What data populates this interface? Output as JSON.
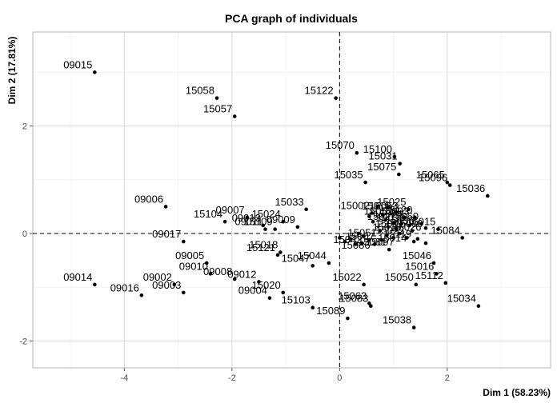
{
  "chart_data": {
    "type": "scatter",
    "title": "PCA graph of individuals",
    "xlabel": "Dim 1 (58.23%)",
    "ylabel": "Dim 2 (17.81%)",
    "xlim": [
      -5.7,
      3.92
    ],
    "ylim": [
      -2.5,
      3.75
    ],
    "xticks": [
      -4,
      -2,
      0,
      2
    ],
    "yticks": [
      -2,
      0,
      2
    ],
    "grid": true,
    "reference_lines": {
      "x": 0,
      "y": 0
    },
    "point_color": "#000000",
    "points": [
      {
        "label": "09015",
        "x": -4.55,
        "y": 3.0
      },
      {
        "label": "15058",
        "x": -2.28,
        "y": 2.52
      },
      {
        "label": "15057",
        "x": -1.95,
        "y": 2.18
      },
      {
        "label": "15122",
        "x": -0.07,
        "y": 2.52
      },
      {
        "label": "15070",
        "x": 0.32,
        "y": 1.5
      },
      {
        "label": "15100",
        "x": 1.02,
        "y": 1.43
      },
      {
        "label": "15031",
        "x": 1.12,
        "y": 1.3
      },
      {
        "label": "15075",
        "x": 1.1,
        "y": 1.1
      },
      {
        "label": "15035",
        "x": 0.48,
        "y": 0.95
      },
      {
        "label": "15065",
        "x": 2.0,
        "y": 0.95
      },
      {
        "label": "15096",
        "x": 2.05,
        "y": 0.9
      },
      {
        "label": "15036",
        "x": 2.75,
        "y": 0.7
      },
      {
        "label": "09006",
        "x": -3.23,
        "y": 0.5
      },
      {
        "label": "15033",
        "x": -0.62,
        "y": 0.45
      },
      {
        "label": "15025",
        "x": 1.28,
        "y": 0.45
      },
      {
        "label": "15120",
        "x": 1.4,
        "y": 0.3
      },
      {
        "label": "15015",
        "x": 1.83,
        "y": 0.08
      },
      {
        "label": "15104",
        "x": -2.13,
        "y": 0.22
      },
      {
        "label": "15024",
        "x": -1.05,
        "y": 0.22
      },
      {
        "label": "09007",
        "x": -1.72,
        "y": 0.3
      },
      {
        "label": "09013",
        "x": -1.42,
        "y": 0.15
      },
      {
        "label": "09011",
        "x": -1.38,
        "y": 0.08
      },
      {
        "label": "15109",
        "x": -1.2,
        "y": 0.08
      },
      {
        "label": "09009",
        "x": -0.78,
        "y": 0.12
      },
      {
        "label": "15002",
        "x": 0.6,
        "y": 0.38
      },
      {
        "label": "15023",
        "x": 1.25,
        "y": -0.08
      },
      {
        "label": "15084",
        "x": 2.28,
        "y": -0.08
      },
      {
        "label": "15119",
        "x": 1.38,
        "y": -0.15
      },
      {
        "label": "15081",
        "x": 0.92,
        "y": -0.3
      },
      {
        "label": "09017",
        "x": -2.9,
        "y": -0.15
      },
      {
        "label": "15018",
        "x": -1.1,
        "y": -0.35
      },
      {
        "label": "15121",
        "x": -1.15,
        "y": -0.4
      },
      {
        "label": "15044",
        "x": -0.2,
        "y": -0.55
      },
      {
        "label": "15047",
        "x": -0.5,
        "y": -0.6
      },
      {
        "label": "15046",
        "x": 1.75,
        "y": -0.55
      },
      {
        "label": "15016",
        "x": 1.8,
        "y": -0.75
      },
      {
        "label": "15112",
        "x": 1.97,
        "y": -0.92
      },
      {
        "label": "09005",
        "x": -2.47,
        "y": -0.55
      },
      {
        "label": "09010",
        "x": -2.4,
        "y": -0.75
      },
      {
        "label": "09008",
        "x": -1.95,
        "y": -0.85
      },
      {
        "label": "09012",
        "x": -1.5,
        "y": -0.9
      },
      {
        "label": "09014",
        "x": -4.55,
        "y": -0.95
      },
      {
        "label": "09002",
        "x": -3.07,
        "y": -0.95
      },
      {
        "label": "09016",
        "x": -3.68,
        "y": -1.15
      },
      {
        "label": "09003",
        "x": -2.9,
        "y": -1.1
      },
      {
        "label": "15020",
        "x": -1.05,
        "y": -1.1
      },
      {
        "label": "09004",
        "x": -1.3,
        "y": -1.2
      },
      {
        "label": "15022",
        "x": 0.45,
        "y": -0.95
      },
      {
        "label": "15050",
        "x": 1.42,
        "y": -0.95
      },
      {
        "label": "15063",
        "x": 0.55,
        "y": -1.3
      },
      {
        "label": "15083",
        "x": 0.58,
        "y": -1.35
      },
      {
        "label": "15103",
        "x": -0.5,
        "y": -1.38
      },
      {
        "label": "15034",
        "x": 2.58,
        "y": -1.35
      },
      {
        "label": "15089",
        "x": 0.15,
        "y": -1.58
      },
      {
        "label": "15038",
        "x": 1.38,
        "y": -1.75
      }
    ],
    "unlabeled_points": [
      {
        "x": 0.55,
        "y": 0.32
      },
      {
        "x": 0.7,
        "y": 0.5
      },
      {
        "x": 0.9,
        "y": 0.48
      },
      {
        "x": 0.8,
        "y": 0.35
      },
      {
        "x": 1.05,
        "y": 0.4
      },
      {
        "x": 1.2,
        "y": 0.3
      },
      {
        "x": 0.62,
        "y": 0.22
      },
      {
        "x": 0.85,
        "y": 0.25
      },
      {
        "x": 1.0,
        "y": 0.2
      },
      {
        "x": 1.15,
        "y": 0.18
      },
      {
        "x": 1.3,
        "y": 0.15
      },
      {
        "x": 1.52,
        "y": 0.18
      },
      {
        "x": 1.6,
        "y": 0.1
      },
      {
        "x": 0.9,
        "y": 0.12
      },
      {
        "x": 1.05,
        "y": 0.08
      },
      {
        "x": 1.35,
        "y": 0.05
      },
      {
        "x": 0.75,
        "y": 0.05
      },
      {
        "x": 0.88,
        "y": -0.03
      },
      {
        "x": 1.12,
        "y": 0.0
      },
      {
        "x": 0.45,
        "y": -0.05
      },
      {
        "x": 0.35,
        "y": 0.0
      },
      {
        "x": 0.55,
        "y": -0.12
      },
      {
        "x": 0.42,
        "y": -0.18
      },
      {
        "x": 0.2,
        "y": -0.1
      },
      {
        "x": 0.0,
        "y": -0.08
      },
      {
        "x": 0.1,
        "y": -0.15
      },
      {
        "x": 0.3,
        "y": -0.2
      },
      {
        "x": 0.65,
        "y": -0.2
      },
      {
        "x": 0.78,
        "y": -0.12
      },
      {
        "x": 1.0,
        "y": -0.08
      },
      {
        "x": 1.45,
        "y": -0.1
      },
      {
        "x": 1.6,
        "y": -0.18
      }
    ],
    "cluster_labels": [
      {
        "label": "15015",
        "x": 0.68,
        "y": 0.45
      },
      {
        "label": "15053",
        "x": 0.82,
        "y": 0.45
      },
      {
        "label": "15052",
        "x": 0.72,
        "y": 0.35
      },
      {
        "label": "15024",
        "x": 0.9,
        "y": 0.3
      },
      {
        "label": "15093",
        "x": 1.02,
        "y": 0.35
      },
      {
        "label": "15027",
        "x": 0.78,
        "y": 0.25
      },
      {
        "label": "15030",
        "x": 0.95,
        "y": 0.22
      },
      {
        "label": "15038",
        "x": 1.12,
        "y": 0.18
      },
      {
        "label": "15060",
        "x": 1.2,
        "y": 0.25
      },
      {
        "label": "15011",
        "x": 0.92,
        "y": 0.12
      },
      {
        "label": "15080",
        "x": 1.28,
        "y": 0.12
      },
      {
        "label": "15019",
        "x": 0.88,
        "y": 0.05
      },
      {
        "label": "15026",
        "x": 1.25,
        "y": 0.05
      },
      {
        "label": "15051",
        "x": 0.42,
        "y": -0.05
      },
      {
        "label": "15007",
        "x": 0.38,
        "y": -0.12
      },
      {
        "label": "15042",
        "x": 0.15,
        "y": -0.18
      },
      {
        "label": "15086",
        "x": 0.3,
        "y": -0.28
      },
      {
        "label": "15014",
        "x": 0.98,
        "y": -0.15
      },
      {
        "label": "15097",
        "x": 0.75,
        "y": -0.22
      }
    ]
  }
}
